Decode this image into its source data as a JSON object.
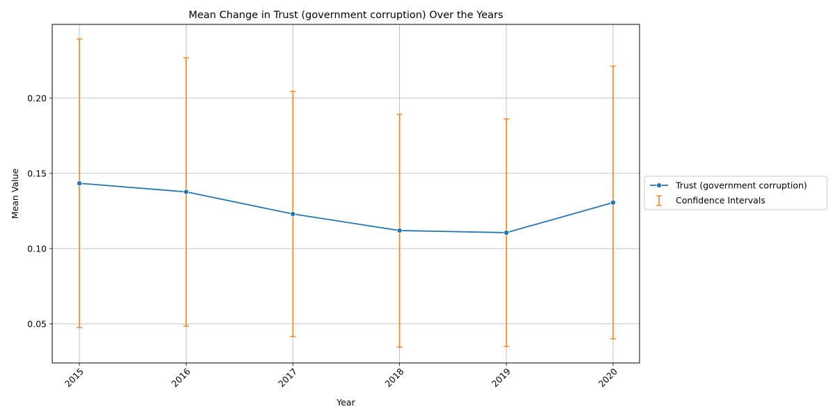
{
  "chart_data": {
    "type": "line",
    "title": "Mean Change in Trust (government corruption) Over the Years",
    "xlabel": "Year",
    "ylabel": "Mean Value",
    "categories": [
      "2015",
      "2016",
      "2017",
      "2018",
      "2019",
      "2020"
    ],
    "ylim": [
      0.024,
      0.249
    ],
    "yticks": [
      "0.05",
      "0.10",
      "0.15",
      "0.20"
    ],
    "grid": true,
    "legend_position": "outside-right",
    "series": [
      {
        "name": "Trust (government corruption)",
        "color": "#1f77b4",
        "marker": "circle",
        "values": [
          0.1434,
          0.1377,
          0.123,
          0.112,
          0.1106,
          0.1306
        ]
      }
    ],
    "error_bars": {
      "name": "Confidence Intervals",
      "color": "#ff7f0e",
      "lower": [
        0.0475,
        0.0485,
        0.0415,
        0.0345,
        0.035,
        0.04
      ],
      "upper": [
        0.2393,
        0.2268,
        0.2044,
        0.1893,
        0.1862,
        0.2212
      ]
    }
  }
}
